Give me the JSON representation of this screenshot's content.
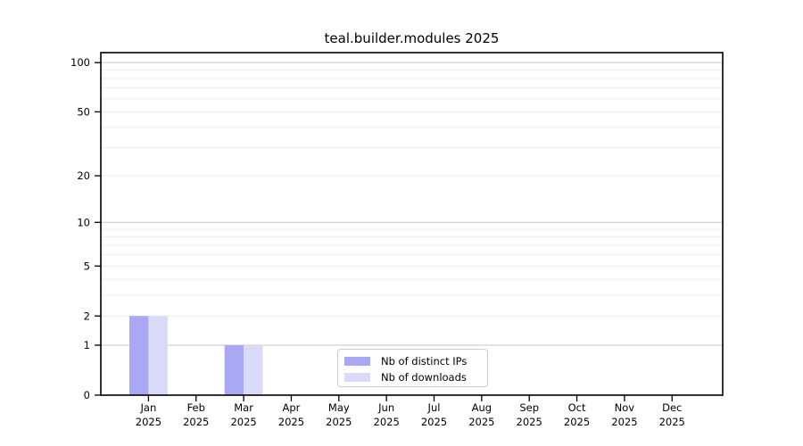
{
  "chart_data": {
    "type": "bar",
    "title": "teal.builder.modules 2025",
    "categories": [
      "Jan",
      "Feb",
      "Mar",
      "Apr",
      "May",
      "Jun",
      "Jul",
      "Aug",
      "Sep",
      "Oct",
      "Nov",
      "Dec"
    ],
    "x_tick_labels": [
      [
        "Jan",
        "2025"
      ],
      [
        "Feb",
        "2025"
      ],
      [
        "Mar",
        "2025"
      ],
      [
        "Apr",
        "2025"
      ],
      [
        "May",
        "2025"
      ],
      [
        "Jun",
        "2025"
      ],
      [
        "Jul",
        "2025"
      ],
      [
        "Aug",
        "2025"
      ],
      [
        "Sep",
        "2025"
      ],
      [
        "Oct",
        "2025"
      ],
      [
        "Nov",
        "2025"
      ],
      [
        "Dec",
        "2025"
      ]
    ],
    "series": [
      {
        "name": "Nb of distinct IPs",
        "color": "#a8a8f4",
        "values": [
          2,
          0,
          1,
          0,
          0,
          0,
          0,
          0,
          0,
          0,
          0,
          0
        ]
      },
      {
        "name": "Nb of downloads",
        "color": "#d9d9f8",
        "values": [
          2,
          0,
          1,
          0,
          0,
          0,
          0,
          0,
          0,
          0,
          0,
          0
        ]
      }
    ],
    "y_scale": "log1p",
    "ylim": [
      0,
      115
    ],
    "y_tick_labels": [
      0,
      1,
      2,
      5,
      10,
      20,
      50,
      100
    ],
    "y_major_gridlines": [
      1,
      10,
      100
    ],
    "y_minor_gridlines": [
      2,
      3,
      4,
      5,
      6,
      7,
      8,
      9,
      20,
      30,
      40,
      50,
      60,
      70,
      80,
      90
    ],
    "grid": "horizontal",
    "legend_position": "inside-bottom-center",
    "colors": {
      "major_grid": "#c6c6c6",
      "minor_grid": "#ececec",
      "spine": "#000000",
      "tick_text": "#000000",
      "background": "#ffffff"
    },
    "xlabel": "",
    "ylabel": ""
  }
}
